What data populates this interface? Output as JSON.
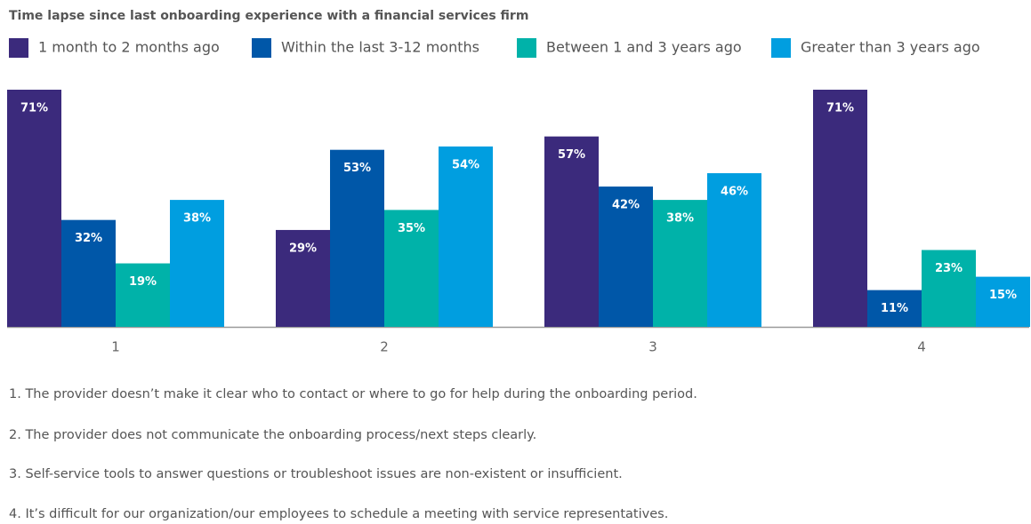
{
  "chart_data": {
    "type": "bar",
    "title": "Time lapse since last onboarding experience with a financial services firm",
    "categories": [
      "1",
      "2",
      "3",
      "4"
    ],
    "series": [
      {
        "name": "1 month to 2 months ago",
        "color": "#3b2a7c",
        "values": [
          71,
          29,
          57,
          71
        ],
        "value_labels": [
          "71%",
          "29%",
          "57%",
          "71%"
        ]
      },
      {
        "name": "Within the last 3-12 months",
        "color": "#0057a8",
        "values": [
          32,
          53,
          42,
          11
        ],
        "value_labels": [
          "32%",
          "53%",
          "42%",
          "11%"
        ]
      },
      {
        "name": "Between 1 and 3 years ago",
        "color": "#00b2a9",
        "values": [
          19,
          35,
          38,
          23
        ],
        "value_labels": [
          "19%",
          "35%",
          "38%",
          "23%"
        ]
      },
      {
        "name": "Greater than 3 years ago",
        "color": "#009ee0",
        "values": [
          38,
          54,
          46,
          15
        ],
        "value_labels": [
          "38%",
          "54%",
          "46%",
          "15%"
        ]
      }
    ],
    "notes": [
      "1. The provider doesn’t make it clear who to contact or where to go for help during the onboarding period.",
      "2. The provider does not communicate the onboarding process/next steps clearly.",
      "3. Self-service tools to answer questions or troubleshoot issues are non-existent or insufficient.",
      "4. It’s difficult for our organization/our employees to schedule a meeting with service representatives."
    ]
  }
}
